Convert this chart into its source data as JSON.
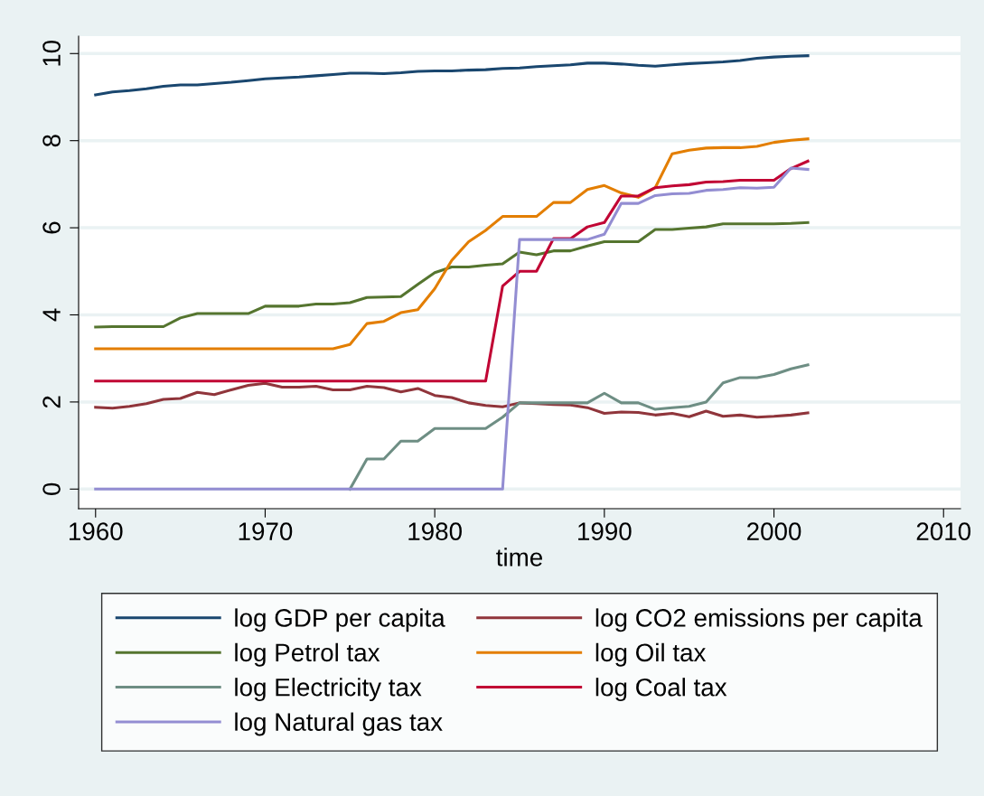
{
  "chart_data": {
    "type": "line",
    "xlabel": "time",
    "x": [
      1960,
      1961,
      1962,
      1963,
      1964,
      1965,
      1966,
      1967,
      1968,
      1969,
      1970,
      1971,
      1972,
      1973,
      1974,
      1975,
      1976,
      1977,
      1978,
      1979,
      1980,
      1981,
      1982,
      1983,
      1984,
      1985,
      1986,
      1987,
      1988,
      1989,
      1990,
      1991,
      1992,
      1993,
      1994,
      1995,
      1996,
      1997,
      1998,
      1999,
      2000,
      2001,
      2002
    ],
    "series": [
      {
        "name": "log GDP per capita",
        "color": "#1a476f",
        "values": [
          9.05,
          9.12,
          9.15,
          9.19,
          9.25,
          9.28,
          9.28,
          9.31,
          9.34,
          9.38,
          9.42,
          9.44,
          9.46,
          9.49,
          9.52,
          9.55,
          9.55,
          9.54,
          9.56,
          9.59,
          9.6,
          9.6,
          9.62,
          9.63,
          9.66,
          9.67,
          9.7,
          9.72,
          9.74,
          9.78,
          9.78,
          9.76,
          9.73,
          9.71,
          9.74,
          9.77,
          9.79,
          9.81,
          9.84,
          9.89,
          9.92,
          9.94,
          9.95
        ]
      },
      {
        "name": "log CO2 emissions per capita",
        "color": "#90353b",
        "values": [
          1.88,
          1.86,
          1.9,
          1.96,
          2.06,
          2.08,
          2.22,
          2.17,
          2.28,
          2.38,
          2.43,
          2.34,
          2.34,
          2.36,
          2.28,
          2.28,
          2.36,
          2.33,
          2.23,
          2.31,
          2.15,
          2.1,
          1.98,
          1.92,
          1.89,
          1.98,
          1.96,
          1.94,
          1.93,
          1.87,
          1.74,
          1.77,
          1.76,
          1.7,
          1.74,
          1.66,
          1.79,
          1.67,
          1.7,
          1.65,
          1.67,
          1.7,
          1.75
        ]
      },
      {
        "name": "log Petrol tax",
        "color": "#55752f",
        "values": [
          3.72,
          3.73,
          3.73,
          3.73,
          3.73,
          3.93,
          4.03,
          4.03,
          4.03,
          4.03,
          4.2,
          4.2,
          4.2,
          4.25,
          4.25,
          4.28,
          4.4,
          4.41,
          4.42,
          4.7,
          4.97,
          5.1,
          5.1,
          5.14,
          5.17,
          5.44,
          5.38,
          5.47,
          5.47,
          5.58,
          5.68,
          5.68,
          5.68,
          5.96,
          5.96,
          5.99,
          6.02,
          6.09,
          6.09,
          6.09,
          6.09,
          6.1,
          6.12
        ]
      },
      {
        "name": "log Oil tax",
        "color": "#e37e00",
        "values": [
          3.22,
          3.22,
          3.22,
          3.22,
          3.22,
          3.22,
          3.22,
          3.22,
          3.22,
          3.22,
          3.22,
          3.22,
          3.22,
          3.22,
          3.22,
          3.32,
          3.8,
          3.85,
          4.05,
          4.12,
          4.6,
          5.25,
          5.68,
          5.94,
          6.26,
          6.26,
          6.26,
          6.58,
          6.58,
          6.88,
          6.97,
          6.8,
          6.7,
          6.92,
          7.7,
          7.78,
          7.83,
          7.84,
          7.84,
          7.87,
          7.96,
          8.01,
          8.04
        ]
      },
      {
        "name": "log Electricity tax",
        "color": "#6e8e84",
        "values": [
          null,
          null,
          null,
          null,
          null,
          null,
          null,
          null,
          null,
          null,
          null,
          null,
          null,
          null,
          null,
          0,
          0.69,
          0.69,
          1.1,
          1.1,
          1.39,
          1.39,
          1.39,
          1.39,
          1.65,
          1.98,
          1.98,
          1.98,
          1.98,
          1.98,
          2.2,
          1.98,
          1.98,
          1.83,
          1.87,
          1.9,
          2.0,
          2.44,
          2.56,
          2.56,
          2.63,
          2.76,
          2.85
        ]
      },
      {
        "name": "log Coal tax",
        "color": "#c10534",
        "values": [
          2.48,
          2.48,
          2.48,
          2.48,
          2.48,
          2.48,
          2.48,
          2.48,
          2.48,
          2.48,
          2.48,
          2.48,
          2.48,
          2.48,
          2.48,
          2.48,
          2.48,
          2.48,
          2.48,
          2.48,
          2.48,
          2.48,
          2.48,
          2.48,
          4.66,
          5.0,
          5.0,
          5.75,
          5.75,
          6.02,
          6.12,
          6.73,
          6.73,
          6.92,
          6.96,
          6.99,
          7.05,
          7.06,
          7.09,
          7.09,
          7.09,
          7.36,
          7.53
        ]
      },
      {
        "name": "log Natural gas tax",
        "color": "#938dd2",
        "values": [
          0,
          0,
          0,
          0,
          0,
          0,
          0,
          0,
          0,
          0,
          0,
          0,
          0,
          0,
          0,
          0,
          0,
          0,
          0,
          0,
          0,
          0,
          0,
          0,
          0,
          5.73,
          5.73,
          5.73,
          5.73,
          5.73,
          5.85,
          6.56,
          6.56,
          6.74,
          6.78,
          6.79,
          6.86,
          6.88,
          6.92,
          6.91,
          6.93,
          7.37,
          7.34
        ]
      }
    ],
    "xlim": [
      1959,
      2011
    ],
    "xticks": [
      1960,
      1970,
      1980,
      1990,
      2000,
      2010
    ],
    "ylim": [
      -0.45,
      10.4
    ],
    "yticks": [
      0,
      2,
      4,
      6,
      8,
      10
    ],
    "grid": "y",
    "legend": "bottom",
    "marker": "none",
    "line_style": "solid"
  }
}
